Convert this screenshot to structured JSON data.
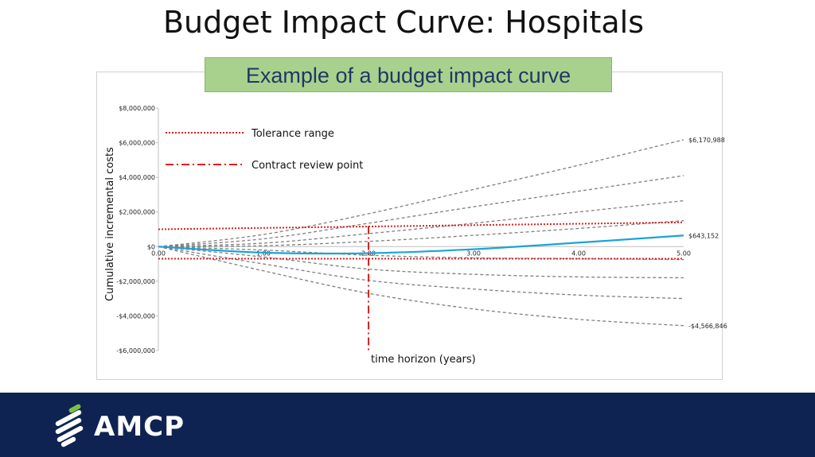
{
  "slide": {
    "title": "Budget Impact Curve: Hospitals",
    "callout": "Example of a budget impact curve",
    "logo_text": "AMCP"
  },
  "colors": {
    "footer": "#0f2352",
    "callout_bg": "#a9d18e",
    "callout_text": "#1f3864",
    "main_series": "#1aa3d9",
    "scenario_series": "#7f7f7f",
    "reference_lines": "#e02020"
  },
  "chart_data": {
    "type": "line",
    "xlabel": "time horizon (years)",
    "ylabel": "Cumulative incremental costs",
    "xlim": [
      0,
      5
    ],
    "ylim": [
      -6000000,
      8000000
    ],
    "x_tick_labels": [
      "0.00",
      "1.00",
      "2.00",
      "3.00",
      "4.00",
      "5.00"
    ],
    "y_tick_labels": [
      "$8,000,000",
      "$6,000,000",
      "$4,000,000",
      "$2,000,000",
      "$0",
      "-$2,000,000",
      "-$4,000,000",
      "-$6,000,000"
    ],
    "y_ticks": [
      8000000,
      6000000,
      4000000,
      2000000,
      0,
      -2000000,
      -4000000,
      -6000000
    ],
    "grid": false,
    "legend_position": "top-left",
    "x": [
      0,
      1,
      2,
      3,
      4,
      5
    ],
    "series": [
      {
        "values": [
          0,
          -350000,
          -380000,
          -150000,
          230000,
          643152
        ],
        "style": "solid",
        "end_label": "$643,152"
      },
      {
        "values": [
          0,
          700000,
          1900000,
          3300000,
          4700000,
          6170988
        ],
        "style": "dashed",
        "end_label": "$6,170,988"
      },
      {
        "values": [
          0,
          450000,
          1350000,
          2300000,
          3200000,
          4100000
        ],
        "style": "dashed",
        "end_label": ""
      },
      {
        "values": [
          0,
          200000,
          750000,
          1350000,
          2000000,
          2650000
        ],
        "style": "dashed",
        "end_label": ""
      },
      {
        "values": [
          0,
          50000,
          300000,
          650000,
          1050000,
          1500000
        ],
        "style": "dashed",
        "end_label": ""
      },
      {
        "values": [
          0,
          -200000,
          -500000,
          -650000,
          -700000,
          -750000
        ],
        "style": "dashed",
        "end_label": ""
      },
      {
        "values": [
          0,
          -600000,
          -1300000,
          -1600000,
          -1750000,
          -1800000
        ],
        "style": "dashed",
        "end_label": ""
      },
      {
        "values": [
          0,
          -1000000,
          -1950000,
          -2450000,
          -2800000,
          -3000000
        ],
        "style": "dashed",
        "end_label": ""
      },
      {
        "values": [
          0,
          -1400000,
          -2700000,
          -3600000,
          -4200000,
          -4566846
        ],
        "style": "dashed",
        "end_label": "-$4,566,846"
      }
    ],
    "tolerance_range": {
      "label": "Tolerance range",
      "upper": 1000000,
      "upper_end": 1400000,
      "lower": -700000
    },
    "contract_review_point": {
      "label": "Contract review point",
      "x": 2.0
    }
  }
}
